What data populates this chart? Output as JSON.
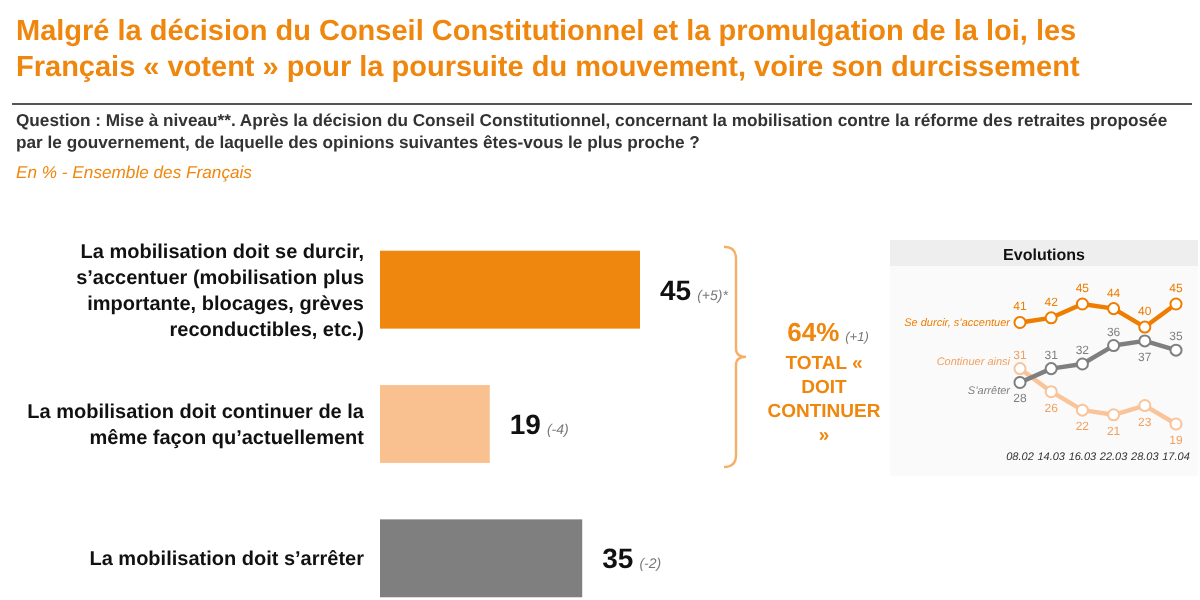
{
  "chart_data": [
    {
      "type": "bar",
      "orientation": "horizontal",
      "title": "Malgré la décision du Conseil Constitutionnel et la promulgation de la loi, les Français « votent » pour la poursuite du mouvement, voire son durcissement",
      "subtitle": "Question : Mise à niveau**. Après la décision du Conseil Constitutionnel, concernant la mobilisation contre la réforme des retraites proposée par le gouvernement, de laquelle des opinions suivantes êtes-vous le plus proche ?",
      "categories": [
        "La mobilisation doit se durcir, s’accentuer (mobilisation plus importante, blocages, grèves reconductibles, etc.)",
        "La mobilisation doit continuer de la même façon qu’actuellement",
        "La mobilisation doit s’arrêter"
      ],
      "values": [
        45,
        19,
        35
      ],
      "colors": [
        "#ef870e",
        "#f9c190",
        "#7f7f7f"
      ],
      "value_labels": [
        "45 (+5)*",
        "19 (-4)",
        "35 (-2)"
      ],
      "annotations": [
        "En % - Ensemble des Français",
        "64% (+1)",
        "TOTAL « DOIT CONTINUER »"
      ]
    },
    {
      "type": "line",
      "title": "Evolutions",
      "categories": [
        "08.02",
        "14.03",
        "16.03",
        "22.03",
        "28.03",
        "17.04"
      ],
      "marker": "circle",
      "data_labels": true,
      "series": [
        {
          "name": "Se durcir, s’accentuer",
          "color": "#ee7d00",
          "values": [
            41,
            42,
            45,
            44,
            40,
            45
          ]
        },
        {
          "name": "Continuer ainsi",
          "color": "#f9c49a",
          "values": [
            31,
            26,
            22,
            21,
            23,
            19
          ]
        },
        {
          "name": "S’arrêter",
          "color": "#7f7f7f",
          "values": [
            28,
            31,
            32,
            36,
            37,
            35
          ]
        }
      ]
    }
  ]
}
